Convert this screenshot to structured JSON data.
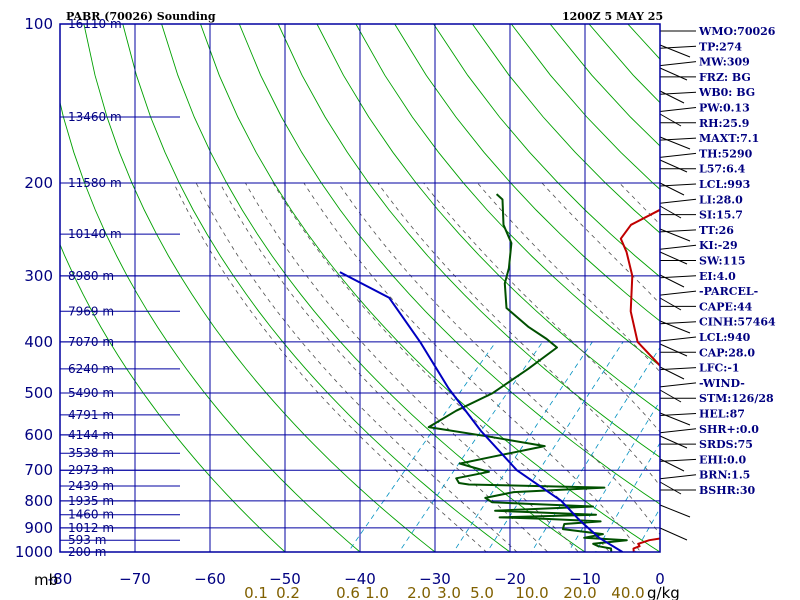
{
  "colors": {
    "frame": "#0000a0",
    "isotherm": "#0000a0",
    "height_label": "#000080",
    "dry_adiabat": "#00a000",
    "moist_adiabat": "#505050",
    "mixing_ratio": "#0090c0",
    "temperature": "#c00000",
    "dewpoint": "#005000",
    "parcel": "#0000c0",
    "mixing_label": "#806000",
    "text": "#000080"
  },
  "chart_data": {
    "type": "line",
    "title": "PABR (70026) Sounding",
    "valid_time": "1200Z  5 MAY 25",
    "xlabel": "",
    "ylabel": "mb",
    "xlim": [
      -80,
      0
    ],
    "ylim": [
      1000,
      100
    ],
    "y_scale": "log",
    "pressure_ticks": [
      100,
      200,
      300,
      400,
      500,
      600,
      700,
      800,
      900,
      1000
    ],
    "pressure_labels": [
      "100",
      "200",
      "300",
      "400",
      "500",
      "600",
      "700",
      "800",
      "900",
      "1000"
    ],
    "temperature_ticks": [
      -80,
      -70,
      -60,
      -50,
      -40,
      -30,
      -20,
      -10,
      0,
      10,
      20,
      30,
      40
    ],
    "temperature_labels": [
      "-80",
      "−70",
      "−60",
      "−50",
      "−40",
      "−30",
      "−20",
      "−10",
      "0",
      "10",
      "20",
      "30",
      "40"
    ],
    "height_levels": [
      {
        "p": 100,
        "label": "16110 m"
      },
      {
        "p": 150,
        "label": "13460 m"
      },
      {
        "p": 200,
        "label": "11580 m"
      },
      {
        "p": 250,
        "label": "10140 m"
      },
      {
        "p": 300,
        "label": "8980 m"
      },
      {
        "p": 350,
        "label": "7969 m"
      },
      {
        "p": 400,
        "label": "7070 m"
      },
      {
        "p": 450,
        "label": "6240 m"
      },
      {
        "p": 500,
        "label": "5490 m"
      },
      {
        "p": 550,
        "label": "4791 m"
      },
      {
        "p": 600,
        "label": "4144 m"
      },
      {
        "p": 650,
        "label": "3538 m"
      },
      {
        "p": 700,
        "label": "2973 m"
      },
      {
        "p": 750,
        "label": "2439 m"
      },
      {
        "p": 800,
        "label": "1935 m"
      },
      {
        "p": 850,
        "label": "1460 m"
      },
      {
        "p": 900,
        "label": "1012 m"
      },
      {
        "p": 950,
        "label": "593 m"
      },
      {
        "p": 1000,
        "label": "200 m"
      }
    ],
    "mixing_ratio_labels": [
      "0.1",
      "0.2",
      "0.6",
      "1.0",
      "2.0",
      "3.0",
      "5.0",
      "10.0",
      "20.0",
      "40.0"
    ],
    "mixing_ratio_unit": "g/kg",
    "series": [
      {
        "name": "Temperature",
        "points": [
          [
            -3.5,
            1000
          ],
          [
            -4.0,
            985
          ],
          [
            -3.5,
            975
          ],
          [
            -4.0,
            965
          ],
          [
            -3.0,
            950
          ],
          [
            -0.5,
            935
          ],
          [
            1.0,
            915
          ],
          [
            1.5,
            895
          ],
          [
            1.0,
            860
          ],
          [
            0.5,
            825
          ],
          [
            1.0,
            800
          ],
          [
            0.0,
            780
          ],
          [
            -1.5,
            755
          ],
          [
            -2.5,
            740
          ],
          [
            -2.5,
            700
          ],
          [
            -4.5,
            650
          ],
          [
            -9.0,
            600
          ],
          [
            -14.0,
            550
          ],
          [
            -18.5,
            500
          ],
          [
            -24.0,
            450
          ],
          [
            -31.0,
            400
          ],
          [
            -36.0,
            350
          ],
          [
            -40.5,
            300
          ],
          [
            -44.5,
            270
          ],
          [
            -47.0,
            255
          ],
          [
            -47.5,
            240
          ],
          [
            -45.0,
            220
          ],
          [
            -42.0,
            200
          ],
          [
            -40.0,
            180
          ],
          [
            -38.0,
            150
          ],
          [
            -37.5,
            130
          ],
          [
            -37.0,
            115
          ],
          [
            -38.0,
            100
          ]
        ]
      },
      {
        "name": "Dewpoint",
        "points": [
          [
            -6.5,
            1000
          ],
          [
            -7.0,
            985
          ],
          [
            -9.0,
            975
          ],
          [
            -10.0,
            965
          ],
          [
            -6.0,
            950
          ],
          [
            -12.0,
            940
          ],
          [
            -10.0,
            925
          ],
          [
            -16.0,
            905
          ],
          [
            -16.5,
            885
          ],
          [
            -12.0,
            875
          ],
          [
            -20.0,
            865
          ],
          [
            -26.0,
            860
          ],
          [
            -13.5,
            850
          ],
          [
            -27.5,
            835
          ],
          [
            -15.0,
            820
          ],
          [
            -29.0,
            805
          ],
          [
            -30.5,
            790
          ],
          [
            -27.5,
            770
          ],
          [
            -16.0,
            755
          ],
          [
            -34.5,
            745
          ],
          [
            -36.0,
            740
          ],
          [
            -37.0,
            725
          ],
          [
            -33.5,
            705
          ],
          [
            -36.5,
            690
          ],
          [
            -38.5,
            680
          ],
          [
            -35.0,
            660
          ],
          [
            -29.5,
            630
          ],
          [
            -38.0,
            605
          ],
          [
            -47.5,
            580
          ],
          [
            -46.0,
            540
          ],
          [
            -43.5,
            500
          ],
          [
            -42.0,
            450
          ],
          [
            -41.0,
            410
          ],
          [
            -43.5,
            395
          ],
          [
            -47.5,
            375
          ],
          [
            -53.0,
            345
          ],
          [
            -56.5,
            310
          ],
          [
            -58.0,
            290
          ],
          [
            -61.0,
            260
          ],
          [
            -64.5,
            240
          ],
          [
            -68.0,
            215
          ],
          [
            -69.5,
            210
          ]
        ]
      },
      {
        "name": "Parcel",
        "points": [
          [
            -5.0,
            1000
          ],
          [
            -10.0,
            940
          ],
          [
            -15.0,
            870
          ],
          [
            -20.0,
            800
          ],
          [
            -30.0,
            700
          ],
          [
            -40.0,
            590
          ],
          [
            -50.0,
            490
          ],
          [
            -60.0,
            400
          ],
          [
            -70.0,
            330
          ],
          [
            -80.0,
            295
          ]
        ]
      }
    ]
  },
  "indices": [
    "WMO:70026",
    "TP:274",
    "MW:309",
    "FRZ: BG",
    "WB0: BG",
    "PW:0.13",
    "RH:25.9",
    "MAXT:7.1",
    "TH:5290",
    "L57:6.4",
    "LCL:993",
    "LI:28.0",
    "SI:15.7",
    "TT:26",
    "KI:-29",
    "SW:115",
    "EI:4.0",
    "-PARCEL-",
    "CAPE:44",
    "CINH:57464",
    "LCL:940",
    "CAP:28.0",
    "LFC:-1",
    "-WIND-",
    "STM:126/28",
    "HEL:87",
    "SHR+:0.0",
    "SRDS:75",
    "EHI:0.0",
    "BRN:1.5",
    "BSHR:30"
  ]
}
